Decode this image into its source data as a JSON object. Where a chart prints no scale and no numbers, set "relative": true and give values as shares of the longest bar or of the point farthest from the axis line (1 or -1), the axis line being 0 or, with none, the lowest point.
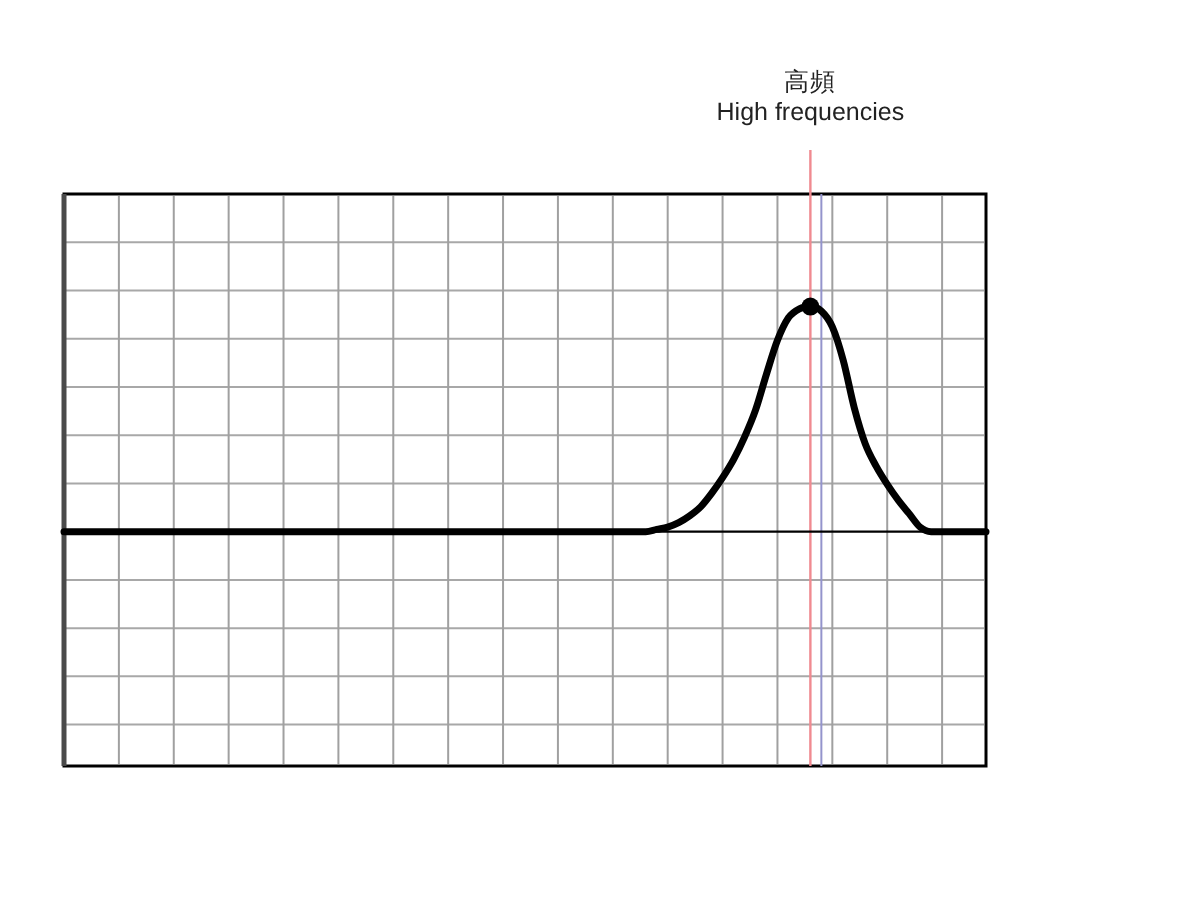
{
  "chart_data": {
    "type": "line",
    "relative": true,
    "grid": true,
    "categories": [
      null,
      null,
      null,
      null,
      null,
      null,
      null,
      null,
      null,
      null,
      null,
      null,
      null,
      null,
      null,
      null,
      null,
      null,
      null,
      null,
      null,
      null,
      null,
      null,
      null,
      null,
      null,
      null,
      null,
      null,
      null,
      null,
      null,
      null,
      null,
      null,
      null,
      null,
      null,
      null,
      null,
      null,
      null,
      null,
      null,
      null,
      null,
      null,
      null,
      null,
      null,
      null,
      null,
      null,
      null,
      null,
      null,
      null,
      null,
      null,
      null,
      null,
      null,
      null,
      null,
      null,
      null,
      null,
      null,
      null,
      null,
      null,
      null,
      null,
      null,
      null,
      null,
      null,
      null,
      null,
      null,
      null,
      null,
      null,
      null
    ],
    "series": [
      {
        "color": "#000000",
        "values": [
          0,
          0,
          0,
          0,
          0,
          0,
          0,
          0,
          0,
          0,
          0,
          0,
          0,
          0,
          0,
          0,
          0,
          0,
          0,
          0,
          0,
          0,
          0,
          0,
          0,
          0,
          0,
          0,
          0,
          0,
          0,
          0,
          0,
          0,
          0,
          0,
          0,
          0,
          0,
          0,
          0,
          0,
          0,
          0,
          0,
          0,
          0,
          0,
          0,
          0,
          0,
          0,
          0,
          0,
          0.01,
          0.02,
          0.04,
          0.07,
          0.11,
          0.17,
          0.24,
          0.32,
          0.42,
          0.54,
          0.7,
          0.85,
          0.95,
          0.99,
          1,
          0.98,
          0.91,
          0.76,
          0.55,
          0.39,
          0.29,
          0.21,
          0.14,
          0.08,
          0.02,
          0,
          0,
          0,
          0,
          0,
          0
        ]
      },
      {
        "color": "#000000",
        "marker": "circle",
        "values": [
          null,
          null,
          null,
          null,
          null,
          null,
          null,
          null,
          null,
          null,
          null,
          null,
          null,
          null,
          null,
          null,
          null,
          null,
          null,
          null,
          null,
          null,
          null,
          null,
          null,
          null,
          null,
          null,
          null,
          null,
          null,
          null,
          null,
          null,
          null,
          null,
          null,
          null,
          null,
          null,
          null,
          null,
          null,
          null,
          null,
          null,
          null,
          null,
          null,
          null,
          null,
          null,
          null,
          null,
          null,
          null,
          null,
          null,
          null,
          null,
          null,
          null,
          null,
          null,
          null,
          null,
          null,
          null,
          1,
          null,
          null,
          null,
          null,
          null,
          null,
          null,
          null,
          null,
          null,
          null,
          null,
          null,
          null,
          null,
          null
        ]
      }
    ],
    "annotations": [
      "高頻\nHigh frequencies"
    ]
  }
}
